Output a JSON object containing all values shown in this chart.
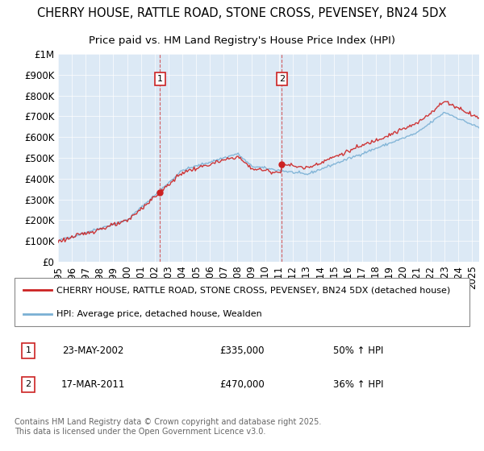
{
  "title": "CHERRY HOUSE, RATTLE ROAD, STONE CROSS, PEVENSEY, BN24 5DX",
  "subtitle": "Price paid vs. HM Land Registry's House Price Index (HPI)",
  "ylabel_ticks": [
    "£0",
    "£100K",
    "£200K",
    "£300K",
    "£400K",
    "£500K",
    "£600K",
    "£700K",
    "£800K",
    "£900K",
    "£1M"
  ],
  "ylim": [
    0,
    1000000
  ],
  "xlim_start": 1995.0,
  "xlim_end": 2025.5,
  "bg_color": "#dce9f5",
  "plot_bg_color": "#dce9f5",
  "line1_color": "#cc2222",
  "line2_color": "#7ab0d4",
  "purchase1_date": "23-MAY-2002",
  "purchase1_price": 335000,
  "purchase1_pct": "50%",
  "purchase2_date": "17-MAR-2011",
  "purchase2_price": 470000,
  "purchase2_pct": "36%",
  "legend1": "CHERRY HOUSE, RATTLE ROAD, STONE CROSS, PEVENSEY, BN24 5DX (detached house)",
  "legend2": "HPI: Average price, detached house, Wealden",
  "footer": "Contains HM Land Registry data © Crown copyright and database right 2025.\nThis data is licensed under the Open Government Licence v3.0.",
  "marker1_label": "1",
  "marker2_label": "2",
  "vline1_x": 2002.39,
  "vline2_x": 2011.21,
  "title_fontsize": 10.5,
  "subtitle_fontsize": 9.5,
  "tick_fontsize": 8.5,
  "legend_fontsize": 8,
  "footer_fontsize": 7
}
